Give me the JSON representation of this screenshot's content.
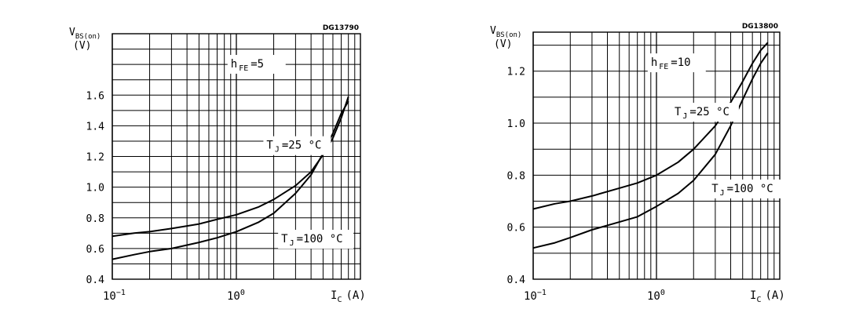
{
  "chart_data": [
    {
      "type": "line",
      "id": "DG13790",
      "x_scale": "log",
      "xlim": [
        0.1,
        10
      ],
      "ylim": [
        0.4,
        2.0
      ],
      "yticks": [
        0.4,
        0.6,
        0.8,
        1.0,
        1.2,
        1.4,
        1.6
      ],
      "ytick_labels": [
        "0.4",
        "0.6",
        "0.8",
        "1.0",
        "1.2",
        "1.4",
        "1.6"
      ],
      "xtick_labels": [
        {
          "x": 0.1,
          "base": "10",
          "exp": "−1"
        },
        {
          "x": 1,
          "base": "10",
          "exp": "0"
        }
      ],
      "ylabel_main": "V",
      "ylabel_sub": "BS(on)",
      "ylabel_unit": "(V)",
      "xlabel_main": "I",
      "xlabel_sub": "C",
      "xlabel_unit": "(A)",
      "params": [
        {
          "main": "h",
          "sub": "FE",
          "value": "=5",
          "at": [
            0.9,
            1.78
          ]
        }
      ],
      "series": [
        {
          "label_main": "T",
          "label_sub": "J",
          "label_value": "=25 °C",
          "label_at": [
            1.75,
            1.25
          ],
          "x": [
            0.1,
            0.15,
            0.2,
            0.3,
            0.5,
            0.7,
            1.0,
            1.5,
            2.0,
            3.0,
            4.0,
            5.0,
            6.0,
            7.0,
            8.0
          ],
          "y": [
            0.68,
            0.7,
            0.71,
            0.73,
            0.76,
            0.79,
            0.82,
            0.87,
            0.92,
            1.01,
            1.1,
            1.21,
            1.32,
            1.45,
            1.59
          ]
        },
        {
          "label_main": "T",
          "label_sub": "J",
          "label_value": "=100 °C",
          "label_at": [
            2.3,
            0.64
          ],
          "x": [
            0.1,
            0.15,
            0.2,
            0.3,
            0.5,
            0.7,
            1.0,
            1.5,
            2.0,
            3.0,
            4.0,
            5.0,
            6.0,
            7.0,
            8.0
          ],
          "y": [
            0.53,
            0.56,
            0.58,
            0.6,
            0.64,
            0.67,
            0.71,
            0.77,
            0.83,
            0.96,
            1.08,
            1.22,
            1.35,
            1.48,
            1.56
          ]
        }
      ]
    },
    {
      "type": "line",
      "id": "DG13800",
      "x_scale": "log",
      "xlim": [
        0.1,
        10
      ],
      "ylim": [
        0.4,
        1.35
      ],
      "yticks": [
        0.4,
        0.6,
        0.8,
        1.0,
        1.2
      ],
      "ytick_labels": [
        "0.4",
        "0.6",
        "0.8",
        "1.0",
        "1.2"
      ],
      "xtick_labels": [
        {
          "x": 0.1,
          "base": "10",
          "exp": "−1"
        },
        {
          "x": 1,
          "base": "10",
          "exp": "0"
        }
      ],
      "ylabel_main": "V",
      "ylabel_sub": "BS(on)",
      "ylabel_unit": "(V)",
      "xlabel_main": "I",
      "xlabel_sub": "C",
      "xlabel_unit": "(A)",
      "params": [
        {
          "main": "h",
          "sub": "FE",
          "value": "=10",
          "at": [
            0.9,
            1.22
          ]
        }
      ],
      "series": [
        {
          "label_main": "T",
          "label_sub": "J",
          "label_value": "=25 °C",
          "label_at": [
            1.4,
            1.03
          ],
          "x": [
            0.1,
            0.15,
            0.2,
            0.3,
            0.5,
            0.7,
            1.0,
            1.5,
            2.0,
            3.0,
            4.0,
            5.0,
            6.0,
            7.0,
            8.0
          ],
          "y": [
            0.67,
            0.69,
            0.7,
            0.72,
            0.75,
            0.77,
            0.8,
            0.85,
            0.9,
            0.99,
            1.08,
            1.16,
            1.23,
            1.28,
            1.31
          ]
        },
        {
          "label_main": "T",
          "label_sub": "J",
          "label_value": "=100 °C",
          "label_at": [
            2.8,
            0.735
          ],
          "x": [
            0.1,
            0.15,
            0.2,
            0.3,
            0.5,
            0.7,
            1.0,
            1.5,
            2.0,
            3.0,
            4.0,
            5.0,
            6.0,
            7.0,
            8.0
          ],
          "y": [
            0.52,
            0.54,
            0.56,
            0.59,
            0.62,
            0.64,
            0.68,
            0.73,
            0.78,
            0.88,
            0.99,
            1.09,
            1.17,
            1.23,
            1.27
          ]
        }
      ]
    }
  ]
}
